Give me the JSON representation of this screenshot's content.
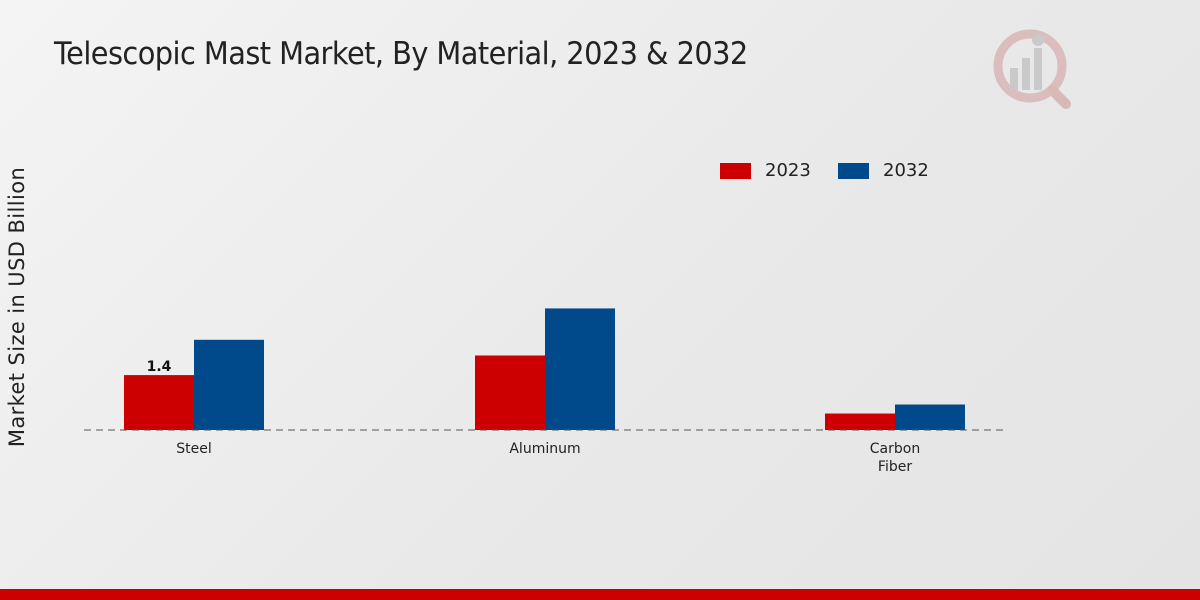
{
  "title": "Telescopic Mast Market, By Material, 2023 & 2032",
  "colors": {
    "2023": "#cc0000",
    "2032": "#004a8c",
    "footer": "#cc0000"
  },
  "legend": [
    "2023",
    "2032"
  ],
  "chart_data": {
    "type": "bar",
    "title": "Telescopic Mast Market, By Material, 2023 & 2032",
    "xlabel": "",
    "ylabel": "Market Size in USD Billion",
    "categories": [
      [
        "Steel"
      ],
      [
        "Aluminum"
      ],
      [
        "Carbon",
        "Fiber"
      ]
    ],
    "series": [
      {
        "name": "2023",
        "color": "#cc0000",
        "values": [
          1.4,
          1.9,
          0.42
        ]
      },
      {
        "name": "2032",
        "color": "#004a8c",
        "values": [
          2.3,
          3.1,
          0.65
        ]
      }
    ],
    "data_labels": [
      {
        "series": 0,
        "index": 0,
        "text": "1.4"
      }
    ],
    "ylim": [
      0,
      10.2
    ],
    "grid": false,
    "legend_position": "top-right"
  }
}
